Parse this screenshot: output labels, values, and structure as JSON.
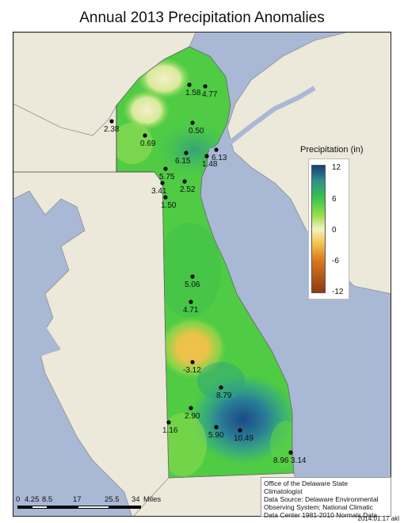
{
  "title": "Annual 2013 Precipitation Anomalies",
  "legend": {
    "title": "Precipitation (in)",
    "ticks": [
      "12",
      "6",
      "0",
      "-6",
      "-12"
    ],
    "colors": {
      "high": "#1b3d7a",
      "mid_high": "#36c24d",
      "zero": "#f5f1c4",
      "mid_low": "#d9781f",
      "low": "#8e3b11"
    }
  },
  "stations": [
    {
      "value": "1.58"
    },
    {
      "value": "4.77"
    },
    {
      "value": "0.50"
    },
    {
      "value": "2.38"
    },
    {
      "value": "0.69"
    },
    {
      "value": "6.15"
    },
    {
      "value": "1.48"
    },
    {
      "value": "6.13"
    },
    {
      "value": "5.75"
    },
    {
      "value": "3.41"
    },
    {
      "value": "2.52"
    },
    {
      "value": "1.50"
    },
    {
      "value": "5.06"
    },
    {
      "value": "4.71"
    },
    {
      "value": "-3.12"
    },
    {
      "value": "8.79"
    },
    {
      "value": "2.90"
    },
    {
      "value": "1.16"
    },
    {
      "value": "5.90"
    },
    {
      "value": "10.49"
    },
    {
      "value": "8.96"
    },
    {
      "value": "3.14"
    }
  ],
  "source": {
    "line1": "Office of the Delaware State Climatologist",
    "line2": "Data Source: Delaware Environmental",
    "line3": "Observing System; National Climatic",
    "line4": "Data Center 1981-2010 Normals Data"
  },
  "scale": {
    "ticks": [
      "0",
      "4.25",
      "8.5",
      "17",
      "25.5",
      "34"
    ],
    "unit": "Miles"
  },
  "credit": "2014.01.17 akl"
}
